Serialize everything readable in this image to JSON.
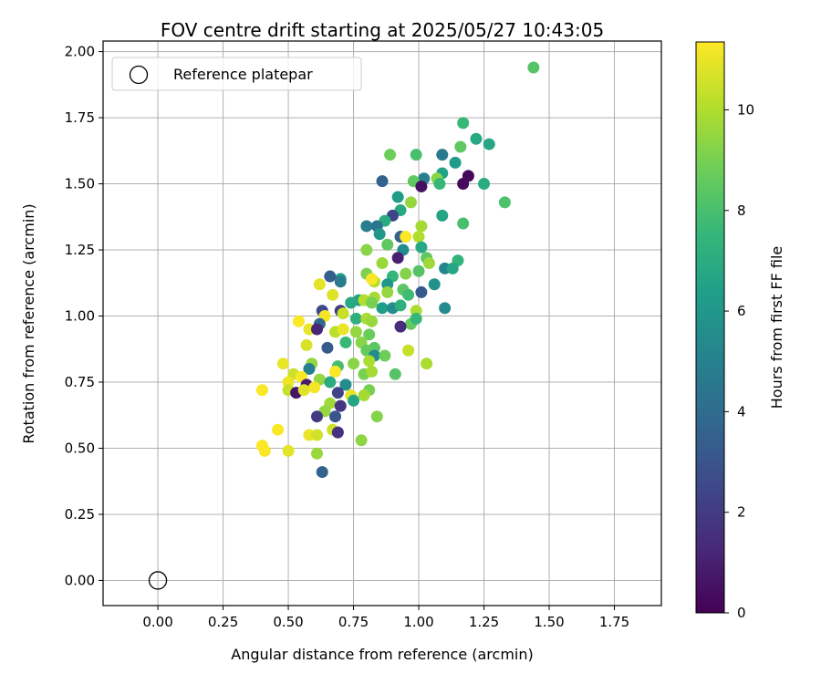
{
  "chart_data": {
    "type": "scatter",
    "title": "FOV centre drift starting at 2025/05/27 10:43:05",
    "xlabel": "Angular distance from reference (arcmin)",
    "ylabel": "Rotation from reference (arcmin)",
    "xlim": [
      -0.21,
      1.93
    ],
    "ylim": [
      -0.095,
      2.04
    ],
    "xticks": [
      "0.00",
      "0.25",
      "0.50",
      "0.75",
      "1.00",
      "1.25",
      "1.50",
      "1.75"
    ],
    "xtick_values": [
      0,
      0.25,
      0.5,
      0.75,
      1.0,
      1.25,
      1.5,
      1.75
    ],
    "yticks": [
      "0.00",
      "0.25",
      "0.50",
      "0.75",
      "1.00",
      "1.25",
      "1.50",
      "1.75",
      "2.00"
    ],
    "ytick_values": [
      0,
      0.25,
      0.5,
      0.75,
      1.0,
      1.25,
      1.5,
      1.75,
      2.0
    ],
    "grid": true,
    "legend": {
      "placement": "top-left",
      "entries": [
        "Reference platepar"
      ]
    },
    "colorbar": {
      "label": "Hours from first FF file",
      "range": [
        0,
        11.35
      ],
      "ticks": [
        "0",
        "2",
        "4",
        "6",
        "8",
        "10"
      ],
      "tick_values": [
        0,
        2,
        4,
        6,
        8,
        10
      ],
      "colormap": "viridis",
      "colormap_stops": [
        "#440154",
        "#482878",
        "#3e4989",
        "#31688e",
        "#26828e",
        "#1f9e89",
        "#35b779",
        "#6ece58",
        "#b5de2b",
        "#fde725"
      ]
    },
    "reference_point": {
      "x": 0.0,
      "y": 0.0,
      "label": "Reference platepar"
    },
    "series": [
      {
        "points": [
          [
            1.44,
            1.94,
            8.3
          ],
          [
            1.17,
            1.73,
            7.6
          ],
          [
            1.22,
            1.67,
            6.8
          ],
          [
            1.27,
            1.65,
            6.7
          ],
          [
            1.16,
            1.64,
            8.5
          ],
          [
            1.14,
            1.58,
            6.2
          ],
          [
            0.89,
            1.61,
            8.8
          ],
          [
            0.99,
            1.61,
            8.0
          ],
          [
            1.09,
            1.61,
            4.6
          ],
          [
            1.19,
            1.53,
            0.2
          ],
          [
            1.17,
            1.5,
            0.3
          ],
          [
            1.25,
            1.5,
            7.0
          ],
          [
            1.09,
            1.54,
            6.5
          ],
          [
            1.02,
            1.52,
            5.0
          ],
          [
            1.07,
            1.52,
            9.3
          ],
          [
            1.08,
            1.5,
            7.6
          ],
          [
            0.86,
            1.51,
            3.6
          ],
          [
            0.98,
            1.51,
            8.5
          ],
          [
            1.01,
            1.49,
            0.5
          ],
          [
            0.92,
            1.45,
            6.2
          ],
          [
            1.33,
            1.43,
            8.1
          ],
          [
            0.97,
            1.43,
            9.5
          ],
          [
            0.93,
            1.4,
            6.8
          ],
          [
            0.9,
            1.38,
            2.4
          ],
          [
            1.09,
            1.38,
            6.6
          ],
          [
            1.17,
            1.35,
            8.0
          ],
          [
            0.8,
            1.34,
            4.8
          ],
          [
            0.87,
            1.36,
            7.0
          ],
          [
            0.84,
            1.34,
            4.3
          ],
          [
            1.01,
            1.34,
            9.8
          ],
          [
            1.0,
            1.3,
            10.0
          ],
          [
            0.93,
            1.3,
            3.4
          ],
          [
            0.95,
            1.3,
            11.3
          ],
          [
            0.85,
            1.31,
            6.0
          ],
          [
            0.88,
            1.27,
            8.5
          ],
          [
            1.01,
            1.26,
            6.8
          ],
          [
            0.94,
            1.25,
            5.5
          ],
          [
            0.8,
            1.25,
            9.3
          ],
          [
            1.03,
            1.22,
            8.5
          ],
          [
            1.04,
            1.2,
            9.7
          ],
          [
            0.92,
            1.22,
            1.0
          ],
          [
            0.86,
            1.2,
            9.6
          ],
          [
            1.15,
            1.21,
            7.4
          ],
          [
            1.1,
            1.18,
            5.2
          ],
          [
            1.13,
            1.18,
            6.7
          ],
          [
            1.0,
            1.17,
            8.3
          ],
          [
            0.95,
            1.16,
            9.2
          ],
          [
            0.9,
            1.15,
            7.5
          ],
          [
            0.8,
            1.16,
            9.1
          ],
          [
            0.83,
            1.13,
            10.1
          ],
          [
            0.82,
            1.14,
            11.3
          ],
          [
            0.7,
            1.14,
            6.3
          ],
          [
            0.66,
            1.15,
            3.4
          ],
          [
            0.62,
            1.12,
            10.9
          ],
          [
            0.77,
            1.06,
            6.5
          ],
          [
            0.7,
            1.13,
            4.7
          ],
          [
            0.88,
            1.12,
            6.0
          ],
          [
            0.94,
            1.1,
            8.4
          ],
          [
            1.06,
            1.12,
            5.7
          ],
          [
            1.01,
            1.09,
            3.2
          ],
          [
            0.96,
            1.08,
            7.8
          ],
          [
            0.88,
            1.09,
            9.5
          ],
          [
            0.83,
            1.07,
            9.8
          ],
          [
            0.79,
            1.06,
            10.0
          ],
          [
            0.82,
            1.05,
            9.0
          ],
          [
            0.67,
            1.08,
            10.8
          ],
          [
            0.74,
            1.05,
            6.8
          ],
          [
            0.86,
            1.03,
            6.3
          ],
          [
            0.9,
            1.03,
            5.5
          ],
          [
            0.93,
            1.04,
            7.2
          ],
          [
            0.99,
            1.02,
            9.9
          ],
          [
            1.1,
            1.03,
            5.4
          ],
          [
            0.7,
            1.02,
            2.0
          ],
          [
            0.63,
            1.02,
            2.5
          ],
          [
            0.64,
            1.0,
            11.2
          ],
          [
            0.71,
            1.01,
            10.4
          ],
          [
            0.76,
            0.99,
            7.2
          ],
          [
            0.8,
            0.99,
            9.9
          ],
          [
            0.82,
            0.98,
            9.6
          ],
          [
            0.97,
            0.97,
            8.6
          ],
          [
            0.99,
            0.99,
            7.5
          ],
          [
            0.93,
            0.96,
            1.5
          ],
          [
            0.62,
            0.97,
            3.8
          ],
          [
            0.54,
            0.98,
            11.3
          ],
          [
            0.58,
            0.95,
            11.0
          ],
          [
            0.61,
            0.95,
            1.2
          ],
          [
            0.68,
            0.94,
            10.2
          ],
          [
            0.71,
            0.95,
            11.0
          ],
          [
            0.76,
            0.94,
            9.5
          ],
          [
            0.81,
            0.93,
            8.7
          ],
          [
            0.72,
            0.9,
            7.6
          ],
          [
            0.78,
            0.9,
            9.3
          ],
          [
            0.83,
            0.88,
            8.4
          ],
          [
            0.57,
            0.89,
            10.7
          ],
          [
            0.65,
            0.88,
            3.2
          ],
          [
            0.8,
            0.87,
            8.6
          ],
          [
            0.83,
            0.85,
            5.5
          ],
          [
            0.87,
            0.85,
            8.8
          ],
          [
            0.96,
            0.87,
            10.4
          ],
          [
            0.81,
            0.83,
            9.9
          ],
          [
            0.75,
            0.82,
            9.3
          ],
          [
            0.69,
            0.81,
            7.9
          ],
          [
            0.59,
            0.82,
            9.5
          ],
          [
            0.48,
            0.82,
            11.0
          ],
          [
            0.52,
            0.78,
            10.5
          ],
          [
            0.58,
            0.8,
            5.0
          ],
          [
            0.68,
            0.79,
            11.3
          ],
          [
            0.79,
            0.78,
            9.0
          ],
          [
            0.82,
            0.79,
            9.8
          ],
          [
            0.91,
            0.78,
            8.3
          ],
          [
            1.03,
            0.82,
            9.9
          ],
          [
            0.55,
            0.77,
            11.3
          ],
          [
            0.62,
            0.76,
            9.5
          ],
          [
            0.5,
            0.75,
            11.1
          ],
          [
            0.57,
            0.74,
            0.9
          ],
          [
            0.66,
            0.75,
            7.0
          ],
          [
            0.72,
            0.74,
            5.5
          ],
          [
            0.81,
            0.72,
            9.0
          ],
          [
            0.4,
            0.72,
            11.3
          ],
          [
            0.5,
            0.72,
            10.4
          ],
          [
            0.53,
            0.71,
            0.7
          ],
          [
            0.56,
            0.72,
            10.8
          ],
          [
            0.6,
            0.73,
            11.2
          ],
          [
            0.69,
            0.71,
            2.3
          ],
          [
            0.74,
            0.7,
            10.9
          ],
          [
            0.75,
            0.68,
            6.7
          ],
          [
            0.79,
            0.7,
            9.8
          ],
          [
            0.66,
            0.67,
            9.7
          ],
          [
            0.7,
            0.66,
            1.8
          ],
          [
            0.64,
            0.64,
            9.5
          ],
          [
            0.61,
            0.62,
            2.0
          ],
          [
            0.68,
            0.62,
            3.0
          ],
          [
            0.84,
            0.62,
            9.2
          ],
          [
            0.67,
            0.57,
            10.5
          ],
          [
            0.69,
            0.56,
            1.6
          ],
          [
            0.46,
            0.57,
            11.3
          ],
          [
            0.58,
            0.55,
            11.0
          ],
          [
            0.61,
            0.55,
            10.6
          ],
          [
            0.78,
            0.53,
            9.4
          ],
          [
            0.4,
            0.51,
            11.3
          ],
          [
            0.41,
            0.49,
            11.3
          ],
          [
            0.5,
            0.49,
            10.9
          ],
          [
            0.61,
            0.48,
            9.6
          ],
          [
            0.63,
            0.41,
            3.6
          ]
        ]
      }
    ]
  }
}
